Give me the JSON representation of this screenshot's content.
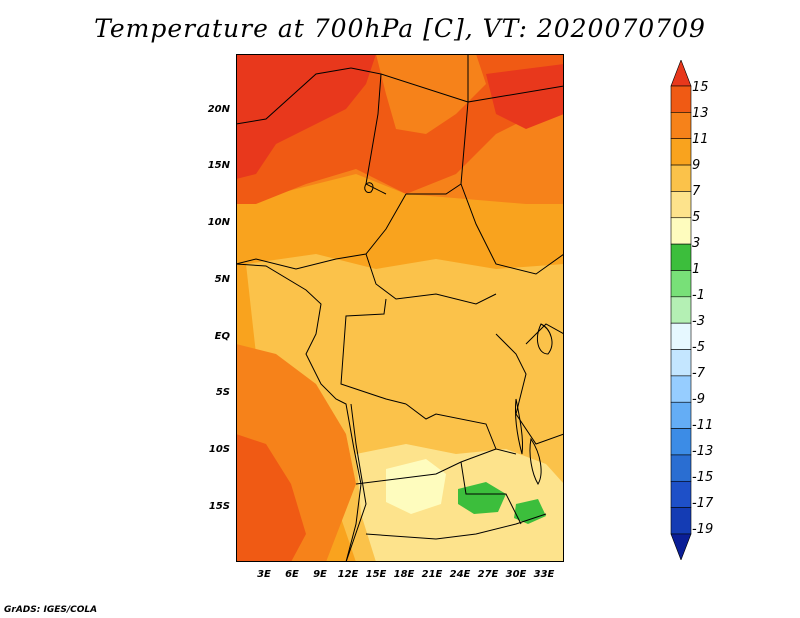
{
  "title": "Temperature at 700hPa [C], VT: 2020070709",
  "credit": "GrADS: IGES/COLA",
  "map": {
    "lat_labels": [
      "20N",
      "15N",
      "10N",
      "5N",
      "EQ",
      "5S",
      "10S",
      "15S"
    ],
    "lon_labels": [
      "3E",
      "6E",
      "9E",
      "12E",
      "15E",
      "18E",
      "21E",
      "24E",
      "27E",
      "30E",
      "33E"
    ]
  },
  "colorbar": {
    "labels": [
      "15",
      "13",
      "11",
      "9",
      "7",
      "5",
      "3",
      "1",
      "-1",
      "-3",
      "-5",
      "-7",
      "-9",
      "-11",
      "-13",
      "-15",
      "-17",
      "-19"
    ],
    "colors": [
      "#e8381c",
      "#f05a14",
      "#f6821a",
      "#f9a31e",
      "#fbc24a",
      "#fde38c",
      "#fefcbe",
      "#3cbe3c",
      "#78e078",
      "#b4f0b4",
      "#e6f8ff",
      "#c4e6ff",
      "#96cdff",
      "#64adf5",
      "#3c8ce6",
      "#2a6ed2",
      "#1e50c8",
      "#143cb4",
      "#0a1e96"
    ]
  }
}
